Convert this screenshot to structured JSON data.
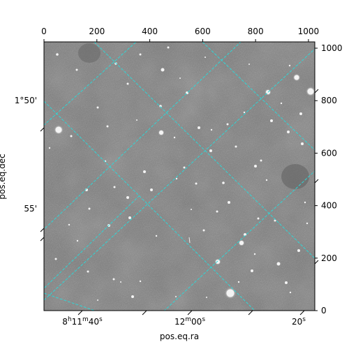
{
  "chart_data": {
    "type": "image",
    "xlabel": "pos.eq.ra",
    "ylabel": "pos.eq.dec",
    "pixel_axes": {
      "top_ticks": [
        0,
        200,
        400,
        600,
        800,
        1000
      ],
      "right_ticks": [
        0,
        200,
        400,
        600,
        800,
        1000
      ],
      "xlim": [
        0,
        1024
      ],
      "ylim": [
        0,
        1024
      ]
    },
    "ra_ticks": [
      {
        "label": "8h11m40s",
        "main": "8",
        "h": "h",
        "m_val": "11",
        "m": "m",
        "s_val": "40",
        "s": "s"
      },
      {
        "label": "12m00s",
        "main": "12",
        "m": "m",
        "s_val": "00",
        "s": "s"
      },
      {
        "label": "20s",
        "main": "20",
        "s": "s"
      }
    ],
    "dec_ticks": [
      {
        "label": "1°50'"
      },
      {
        "label": "55'"
      }
    ],
    "grid": true,
    "grid_color": "#2fd6d6",
    "background_color": "#7a7a7a"
  }
}
